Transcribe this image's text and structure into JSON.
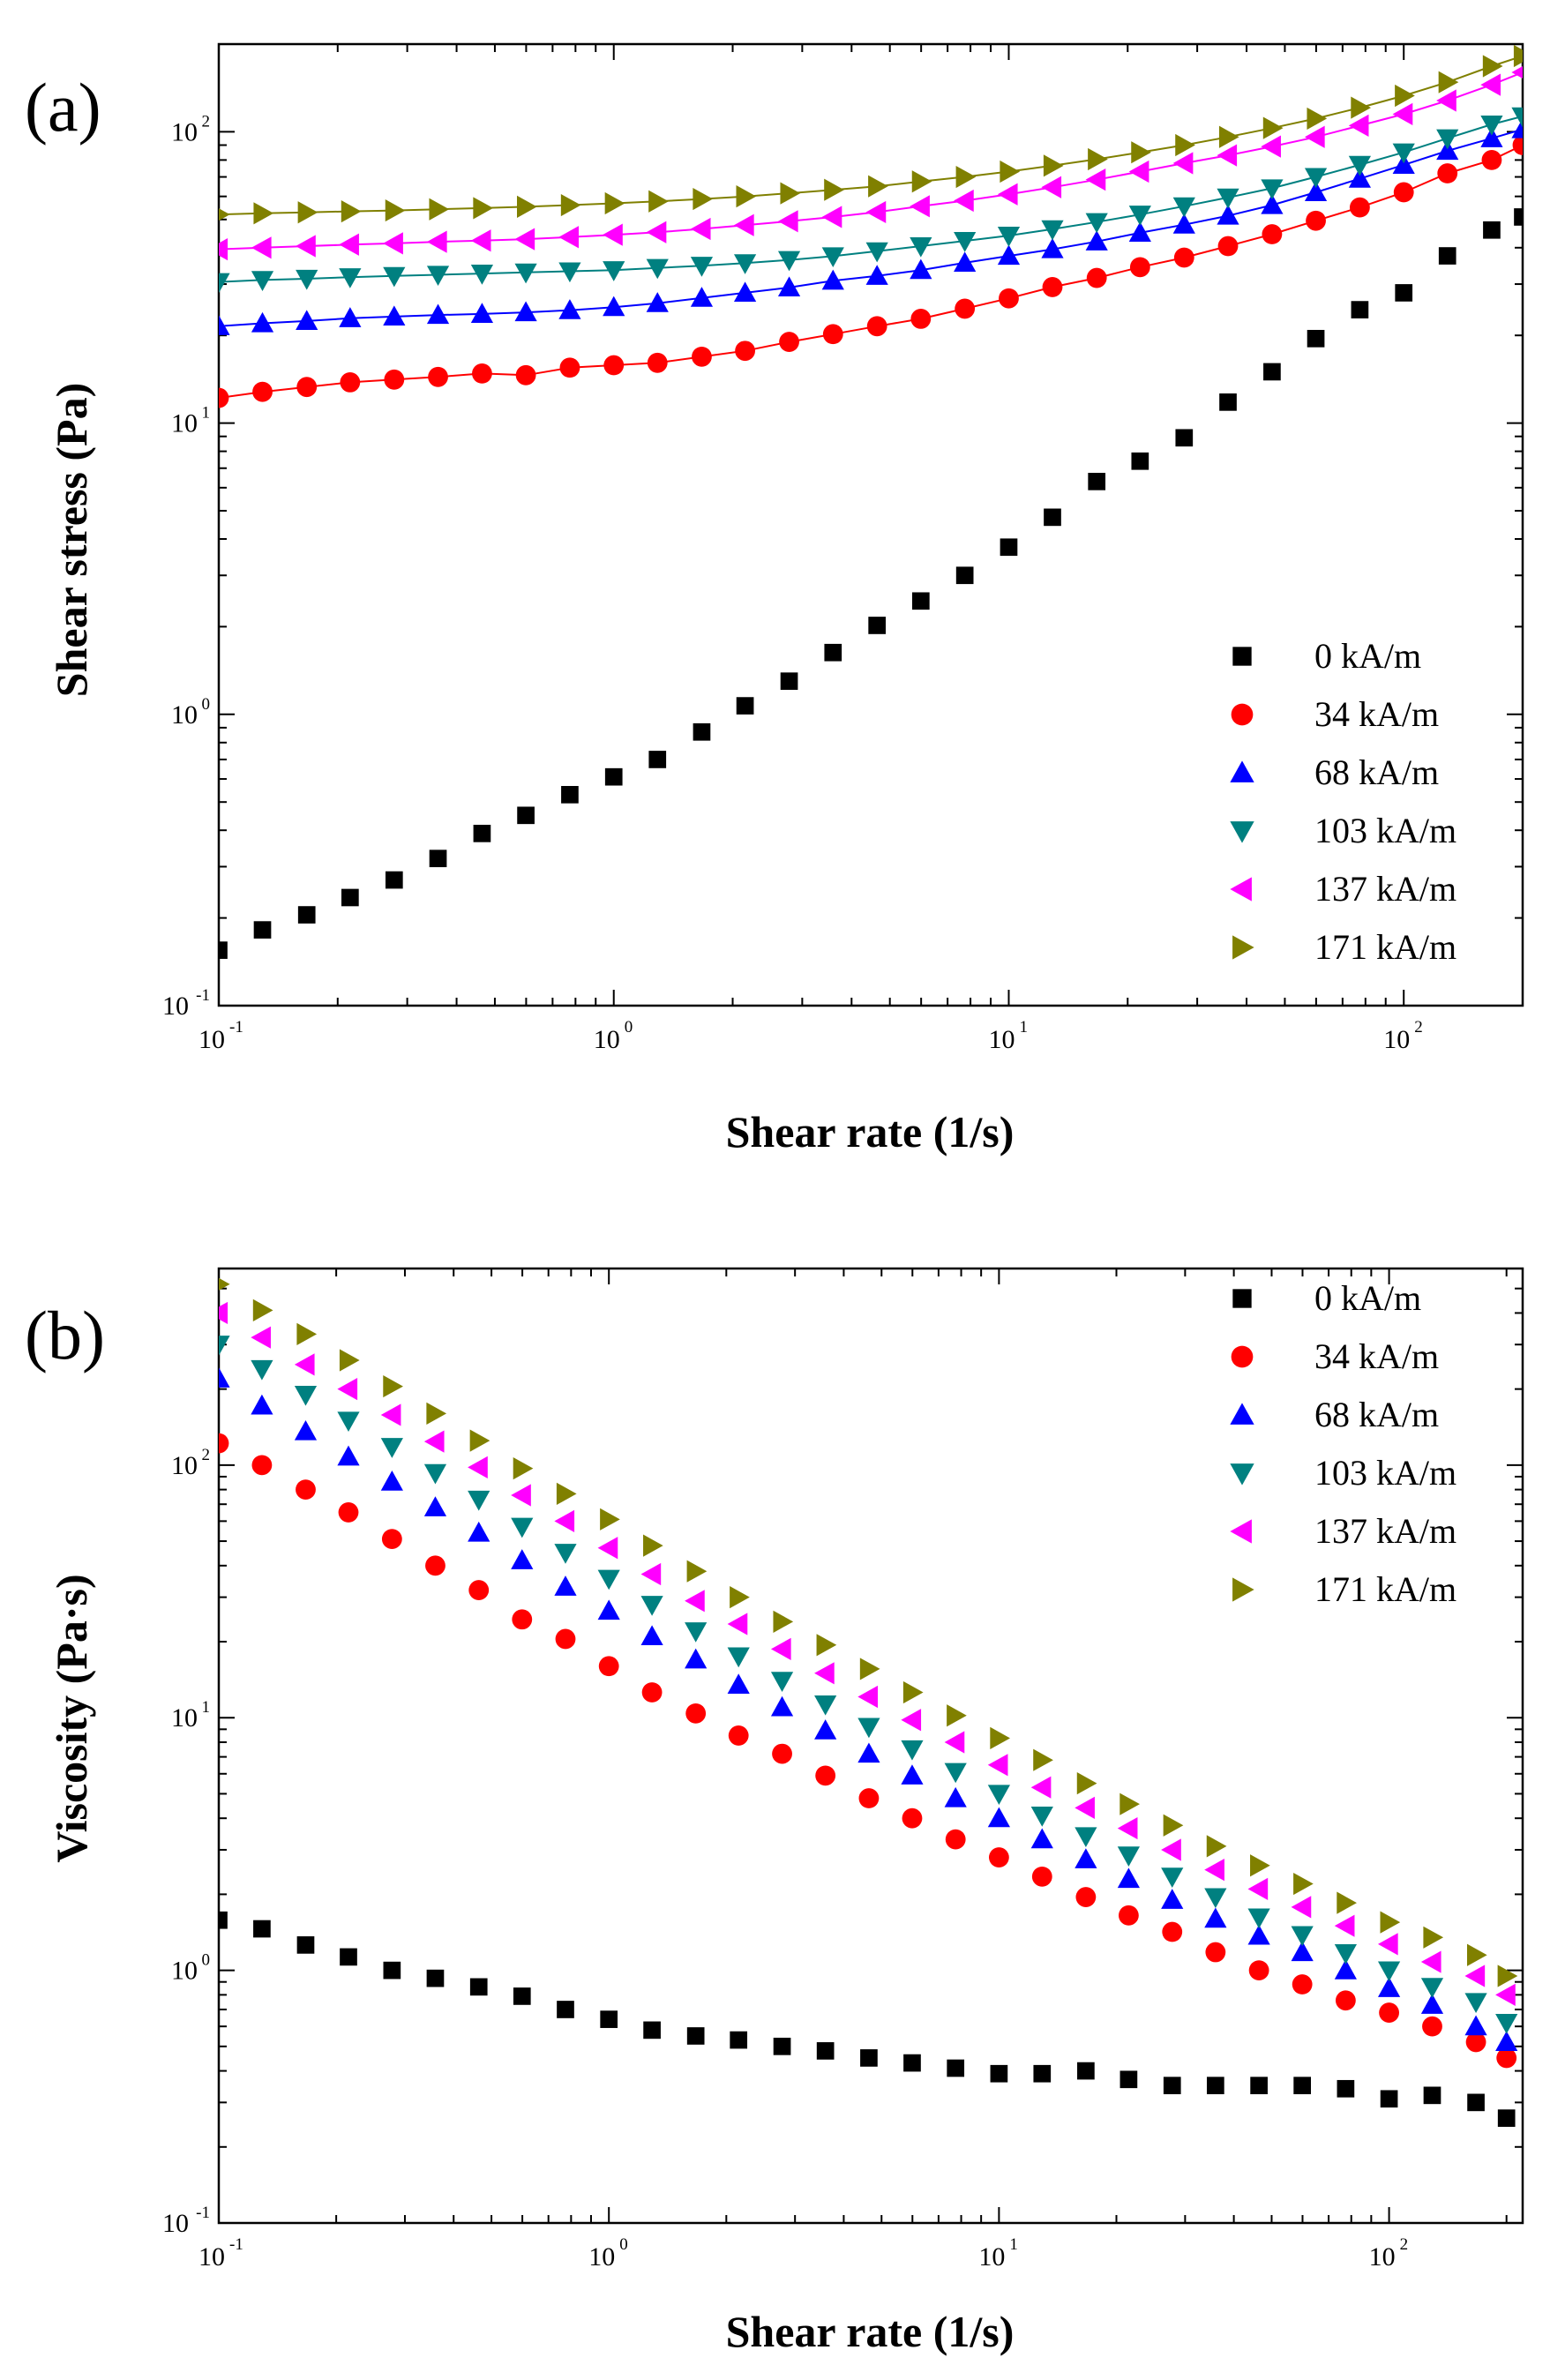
{
  "chart_data": [
    {
      "type": "scatter",
      "panel_label": "(a)",
      "xlabel": "Shear rate (1/s)",
      "ylabel": "Shear stress (Pa)",
      "xscale": "log",
      "yscale": "log",
      "xlim": [
        0.1,
        200
      ],
      "ylim": [
        0.1,
        200
      ],
      "x_ticks": [
        {
          "base": "10",
          "exp": "-1",
          "value": 0.1
        },
        {
          "base": "10",
          "exp": "0",
          "value": 1
        },
        {
          "base": "10",
          "exp": "1",
          "value": 10
        },
        {
          "base": "10",
          "exp": "2",
          "value": 100
        }
      ],
      "y_ticks": [
        {
          "base": "10",
          "exp": "-1",
          "value": 0.1
        },
        {
          "base": "10",
          "exp": "0",
          "value": 1
        },
        {
          "base": "10",
          "exp": "1",
          "value": 10
        },
        {
          "base": "10",
          "exp": "2",
          "value": 100
        }
      ],
      "legend_position": "lower-right",
      "fit_lines": true,
      "x": [
        0.1,
        0.129,
        0.167,
        0.215,
        0.278,
        0.359,
        0.464,
        0.599,
        0.774,
        1.0,
        1.29,
        1.67,
        2.15,
        2.78,
        3.59,
        4.64,
        5.99,
        7.74,
        10.0,
        12.9,
        16.7,
        21.5,
        27.8,
        35.9,
        46.4,
        59.9,
        77.4,
        100,
        129,
        167,
        200
      ],
      "series": [
        {
          "name": "0 kA/m",
          "marker": "square",
          "color": "#000000",
          "values": [
            0.155,
            0.182,
            0.205,
            0.235,
            0.27,
            0.32,
            0.39,
            0.45,
            0.53,
            0.61,
            0.7,
            0.87,
            1.07,
            1.3,
            1.63,
            2.02,
            2.45,
            3.0,
            3.75,
            4.75,
            6.3,
            7.4,
            8.9,
            11.8,
            15.0,
            19.5,
            24.5,
            28.0,
            37.5,
            46.0,
            51.0
          ]
        },
        {
          "name": "34 kA/m",
          "marker": "circle",
          "color": "#ff0000",
          "values": [
            12.2,
            12.8,
            13.3,
            13.8,
            14.1,
            14.4,
            14.8,
            14.6,
            15.5,
            15.8,
            16.1,
            16.9,
            17.7,
            19.0,
            20.2,
            21.5,
            22.8,
            24.7,
            26.8,
            29.3,
            31.5,
            34.3,
            37.0,
            40.5,
            44.5,
            49.5,
            55.0,
            62.0,
            72.0,
            80.0,
            90.0
          ]
        },
        {
          "name": "68 kA/m",
          "marker": "triangle-up",
          "color": "#0000ff",
          "values": [
            21.5,
            22.0,
            22.4,
            22.9,
            23.2,
            23.5,
            23.7,
            24.0,
            24.4,
            25.0,
            25.8,
            26.9,
            28.0,
            29.2,
            30.8,
            32.0,
            33.5,
            35.5,
            37.5,
            39.5,
            42.0,
            45.0,
            48.0,
            51.5,
            56.0,
            62.0,
            69.0,
            77.0,
            86.0,
            95.0,
            102.0
          ]
        },
        {
          "name": "103 kA/m",
          "marker": "triangle-down",
          "color": "#008080",
          "values": [
            30.5,
            31.0,
            31.3,
            31.7,
            32.0,
            32.3,
            32.6,
            32.9,
            33.2,
            33.5,
            34.1,
            34.7,
            35.4,
            36.3,
            37.4,
            38.9,
            40.5,
            42.2,
            44.0,
            46.3,
            49.0,
            52.0,
            55.5,
            59.5,
            64.0,
            70.0,
            77.0,
            85.0,
            95.0,
            106.0,
            113.0
          ]
        },
        {
          "name": "137 kA/m",
          "marker": "triangle-left",
          "color": "#ff00ff",
          "values": [
            39.5,
            40.0,
            40.5,
            41.0,
            41.4,
            41.9,
            42.3,
            42.8,
            43.5,
            44.3,
            45.2,
            46.4,
            47.8,
            49.3,
            51.0,
            53.0,
            55.5,
            58.0,
            61.0,
            64.5,
            68.5,
            73.0,
            78.0,
            83.0,
            89.0,
            96.0,
            105.0,
            115.0,
            128.0,
            145.0,
            160.0
          ]
        },
        {
          "name": "171 kA/m",
          "marker": "triangle-right",
          "color": "#808000",
          "values": [
            52.0,
            52.5,
            52.9,
            53.3,
            53.7,
            54.2,
            54.7,
            55.3,
            56.0,
            56.8,
            57.7,
            58.8,
            60.0,
            61.5,
            63.2,
            65.0,
            67.5,
            70.0,
            73.0,
            76.5,
            80.5,
            85.0,
            90.0,
            96.0,
            103.0,
            111.0,
            121.0,
            133.0,
            148.0,
            168.0,
            182.0
          ]
        }
      ]
    },
    {
      "type": "scatter",
      "panel_label": "(b)",
      "xlabel": "Shear rate (1/s)",
      "ylabel": "Viscosity (Pa·s)",
      "xscale": "log",
      "yscale": "log",
      "xlim": [
        0.1,
        220
      ],
      "ylim": [
        0.1,
        600
      ],
      "x_ticks": [
        {
          "base": "10",
          "exp": "-1",
          "value": 0.1
        },
        {
          "base": "10",
          "exp": "0",
          "value": 1
        },
        {
          "base": "10",
          "exp": "1",
          "value": 10
        },
        {
          "base": "10",
          "exp": "2",
          "value": 100
        }
      ],
      "y_ticks": [
        {
          "base": "10",
          "exp": "-1",
          "value": 0.1
        },
        {
          "base": "10",
          "exp": "0",
          "value": 1
        },
        {
          "base": "10",
          "exp": "1",
          "value": 10
        },
        {
          "base": "10",
          "exp": "2",
          "value": 100
        }
      ],
      "legend_position": "top-right",
      "fit_lines": false,
      "x": [
        0.1,
        0.129,
        0.167,
        0.215,
        0.278,
        0.359,
        0.464,
        0.599,
        0.774,
        1.0,
        1.29,
        1.67,
        2.15,
        2.78,
        3.59,
        4.64,
        5.99,
        7.74,
        10.0,
        12.9,
        16.7,
        21.5,
        27.8,
        35.9,
        46.4,
        59.9,
        77.4,
        100,
        129,
        167,
        200
      ],
      "series": [
        {
          "name": "0 kA/m",
          "marker": "square",
          "color": "#000000",
          "values": [
            1.58,
            1.46,
            1.26,
            1.13,
            1.0,
            0.93,
            0.86,
            0.79,
            0.7,
            0.64,
            0.58,
            0.55,
            0.53,
            0.5,
            0.48,
            0.45,
            0.43,
            0.41,
            0.39,
            0.39,
            0.4,
            0.37,
            0.35,
            0.35,
            0.35,
            0.35,
            0.34,
            0.31,
            0.32,
            0.3,
            0.26
          ]
        },
        {
          "name": "34 kA/m",
          "marker": "circle",
          "color": "#ff0000",
          "values": [
            122,
            100,
            80,
            65,
            51,
            40,
            32,
            24.5,
            20.5,
            16.0,
            12.6,
            10.4,
            8.5,
            7.2,
            5.9,
            4.8,
            4.0,
            3.3,
            2.8,
            2.35,
            1.95,
            1.65,
            1.42,
            1.18,
            1.0,
            0.88,
            0.76,
            0.68,
            0.6,
            0.52,
            0.45
          ]
        },
        {
          "name": "68 kA/m",
          "marker": "triangle-up",
          "color": "#0000ff",
          "values": [
            220,
            172,
            136,
            108,
            86,
            68,
            54,
            42,
            33,
            26.5,
            21,
            17,
            13.5,
            11,
            8.9,
            7.2,
            5.9,
            4.8,
            4.0,
            3.3,
            2.75,
            2.3,
            1.9,
            1.6,
            1.37,
            1.18,
            1.0,
            0.85,
            0.73,
            0.6,
            0.52
          ]
        },
        {
          "name": "103 kA/m",
          "marker": "triangle-down",
          "color": "#008080",
          "values": [
            300,
            240,
            190,
            150,
            118,
            93,
            73,
            57,
            45,
            35.5,
            28,
            22,
            17.5,
            14,
            11.3,
            9.2,
            7.5,
            6.1,
            5.0,
            4.1,
            3.4,
            2.85,
            2.35,
            1.95,
            1.62,
            1.38,
            1.17,
            1.0,
            0.86,
            0.75,
            0.62
          ]
        },
        {
          "name": "137 kA/m",
          "marker": "triangle-left",
          "color": "#ff00ff",
          "values": [
            400,
            320,
            250,
            200,
            158,
            124,
            98,
            76,
            60,
            47,
            37,
            29,
            23.5,
            18.7,
            15,
            12.1,
            9.8,
            8.0,
            6.5,
            5.3,
            4.4,
            3.65,
            3.0,
            2.5,
            2.1,
            1.78,
            1.5,
            1.27,
            1.08,
            0.95,
            0.8
          ]
        },
        {
          "name": "171 kA/m",
          "marker": "triangle-right",
          "color": "#808000",
          "values": [
            520,
            410,
            330,
            260,
            205,
            160,
            125,
            97,
            77,
            61,
            48,
            38,
            30,
            24,
            19.4,
            15.6,
            12.6,
            10.2,
            8.3,
            6.8,
            5.5,
            4.55,
            3.75,
            3.1,
            2.6,
            2.2,
            1.85,
            1.55,
            1.35,
            1.15,
            0.95
          ]
        }
      ]
    }
  ]
}
